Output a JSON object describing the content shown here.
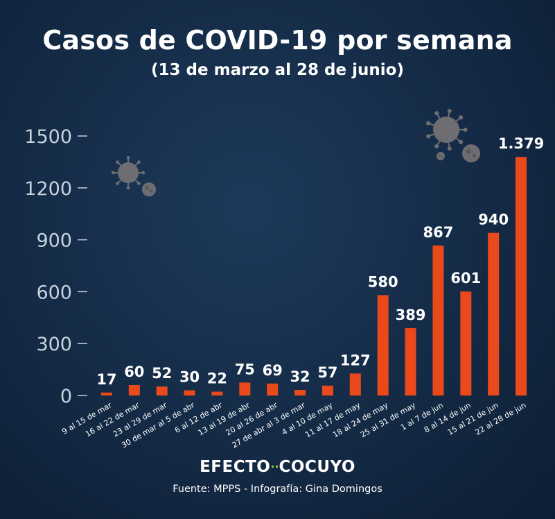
{
  "header": {
    "title": "Casos de COVID-19 por semana",
    "subtitle": "(13 de marzo al 28 de junio)"
  },
  "footer": {
    "brand_left": "EFECTO",
    "brand_dots": "··",
    "brand_right": "COCUYO",
    "source": "Fuente: MPPS - Infografía: Gina Domingos"
  },
  "colors": {
    "bar": "#ea4a1b",
    "text": "#ffffff",
    "tick": "#c9d3de",
    "virus": "#6e6e72"
  },
  "decorations": [
    "virus-icon",
    "virus-icon"
  ],
  "chart_data": {
    "type": "bar",
    "title": "Casos de COVID-19 por semana",
    "subtitle": "(13 de marzo al 28 de junio)",
    "categories": [
      "9 al 15 de mar",
      "16 al 22 de mar",
      "23 al 29 de mar",
      "30 de mar al 5 de abr",
      "6 al 12 de abr",
      "13 al 19 de abr",
      "20 al 26 de abr",
      "27 de abr al 3 de mar",
      "4 al 10 de may",
      "11 al 17 de may",
      "18 al 24 de may",
      "25 al 31 de may",
      "1 al 7 de jun",
      "8 al 14 de jun",
      "15 al 21 de jun",
      "22 al 28 de jun"
    ],
    "values": [
      17,
      60,
      52,
      30,
      22,
      75,
      69,
      32,
      57,
      127,
      580,
      389,
      867,
      601,
      940,
      1379
    ],
    "value_labels": [
      "17",
      "60",
      "52",
      "30",
      "22",
      "75",
      "69",
      "32",
      "57",
      "127",
      "580",
      "389",
      "867",
      "601",
      "940",
      "1.379"
    ],
    "yticks": [
      0,
      300,
      600,
      900,
      1200,
      1500
    ],
    "ylim": [
      0,
      1500
    ],
    "xlabel": "",
    "ylabel": "",
    "grid": false,
    "legend": "none"
  }
}
